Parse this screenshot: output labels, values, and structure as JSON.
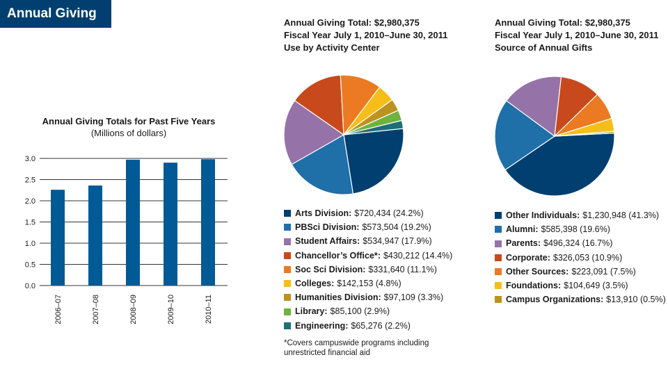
{
  "header": {
    "title": "Annual Giving"
  },
  "bar_panel": {
    "title": "Annual Giving Totals for Past Five Years",
    "subtitle": "(Millions of dollars)"
  },
  "pie1": {
    "heading": [
      "Annual Giving Total: $2,980,375",
      "Fiscal Year July 1, 2010–June 30, 2011",
      "Use by Activity Center"
    ],
    "legend": [
      {
        "name": "Arts Division:",
        "value": "$720,434 (24.2%)",
        "color": "#003f6f"
      },
      {
        "name": "PBSci Division:",
        "value": "$573,504 (19.2%)",
        "color": "#1f6fa8"
      },
      {
        "name": "Student Affairs:",
        "value": "$534,947 (17.9%)",
        "color": "#9573a9"
      },
      {
        "name": "Chancellor’s Office*:",
        "value": "$430,212 (14.4%)",
        "color": "#c8491b"
      },
      {
        "name": "Soc Sci Division:",
        "value": "$331,640 (11.1%)",
        "color": "#ec7a22"
      },
      {
        "name": "Colleges:",
        "value": "$142,153 (4.8%)",
        "color": "#f6be18"
      },
      {
        "name": "Humanities Division:",
        "value": "$97,109 (3.3%)",
        "color": "#bc9220"
      },
      {
        "name": "Library:",
        "value": "$85,100 (2.9%)",
        "color": "#6db33f"
      },
      {
        "name": "Engineering:",
        "value": "$65,276 (2.2%)",
        "color": "#1e6e78"
      }
    ],
    "footnote": "*Covers campuswide programs including unrestricted financial aid"
  },
  "pie2": {
    "heading": [
      "Annual Giving Total: $2,980,375",
      "Fiscal Year July 1, 2010–June 30, 2011",
      "Source of Annual Gifts"
    ],
    "legend": [
      {
        "name": "Other Individuals:",
        "value": "$1,230,948 (41.3%)",
        "color": "#003f6f"
      },
      {
        "name": "Alumni:",
        "value": "$585,398 (19.6%)",
        "color": "#1f6fa8"
      },
      {
        "name": "Parents:",
        "value": "$496,324 (16.7%)",
        "color": "#9573a9"
      },
      {
        "name": "Corporate:",
        "value": "$326,053 (10.9%)",
        "color": "#c8491b"
      },
      {
        "name": "Other Sources:",
        "value": "$223,091 (7.5%)",
        "color": "#ec7a22"
      },
      {
        "name": "Foundations:",
        "value": "$104,649 (3.5%)",
        "color": "#f6be18"
      },
      {
        "name": "Campus Organizations:",
        "value": "$13,910 (0.5%)",
        "color": "#bc9220"
      }
    ]
  },
  "chart_data": [
    {
      "type": "bar",
      "title": "Annual Giving Totals for Past Five Years",
      "subtitle": "(Millions of dollars)",
      "categories": [
        "2006–07",
        "2007–08",
        "2008–09",
        "2009–10",
        "2010–11"
      ],
      "values": [
        2.26,
        2.36,
        2.97,
        2.9,
        2.98
      ],
      "ylim": [
        0,
        3.0
      ],
      "yticks": [
        "0.0",
        "0.5",
        "1.0",
        "1.5",
        "2.0",
        "2.5",
        "3.0"
      ],
      "grid": true,
      "color": "#005a96"
    },
    {
      "type": "pie",
      "title": "Use by Activity Center",
      "labels": [
        "Arts Division",
        "PBSci Division",
        "Student Affairs",
        "Chancellor’s Office*",
        "Soc Sci Division",
        "Colleges",
        "Humanities Division",
        "Library",
        "Engineering"
      ],
      "values": [
        720434,
        573504,
        534947,
        430212,
        331640,
        142153,
        97109,
        85100,
        65276
      ],
      "percents": [
        24.2,
        19.2,
        17.9,
        14.4,
        11.1,
        4.8,
        3.3,
        2.9,
        2.2
      ],
      "colors": [
        "#003f6f",
        "#1f6fa8",
        "#9573a9",
        "#c8491b",
        "#ec7a22",
        "#f6be18",
        "#bc9220",
        "#6db33f",
        "#1e6e78"
      ]
    },
    {
      "type": "pie",
      "title": "Source of Annual Gifts",
      "labels": [
        "Other Individuals",
        "Alumni",
        "Parents",
        "Corporate",
        "Other Sources",
        "Foundations",
        "Campus Organizations"
      ],
      "values": [
        1230948,
        585398,
        496324,
        326053,
        223091,
        104649,
        13910
      ],
      "percents": [
        41.3,
        19.6,
        16.7,
        10.9,
        7.5,
        3.5,
        0.5
      ],
      "colors": [
        "#003f6f",
        "#1f6fa8",
        "#9573a9",
        "#c8491b",
        "#ec7a22",
        "#f6be18",
        "#bc9220"
      ]
    }
  ]
}
